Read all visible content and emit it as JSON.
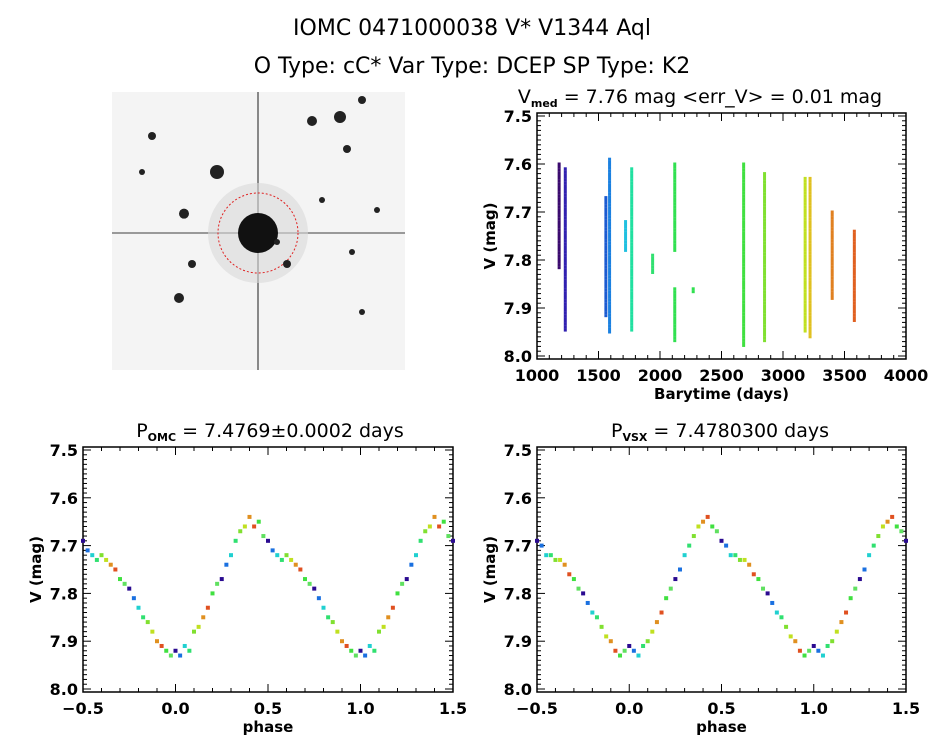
{
  "header": {
    "title": "IOMC 0471000038    V* V1344 Aql",
    "subtitle": "O Type: cC*  Var Type: DCEP  SP Type: K2"
  },
  "image_panel": {
    "description_icon": "sky-image",
    "marker_color": "#e02020"
  },
  "chart_data": [
    {
      "type": "scatter",
      "title": {
        "main": "V",
        "sub": "med",
        "rest": " = 7.76 mag <err_V> = 0.01 mag"
      },
      "xlabel": "Barytime (days)",
      "ylabel": "V (mag)",
      "xlim": [
        1000,
        4000
      ],
      "ylim": [
        8.0,
        7.5
      ],
      "xticks": [
        "1000",
        "1500",
        "2000",
        "2500",
        "3000",
        "3500",
        "4000"
      ],
      "yticks": [
        "7.5",
        "7.6",
        "7.7",
        "7.8",
        "7.9",
        "8.0"
      ],
      "seasons": [
        {
          "t": 1180,
          "vmin": 7.6,
          "vmax": 7.82,
          "color": "#3a0a6e"
        },
        {
          "t": 1230,
          "vmin": 7.61,
          "vmax": 7.95,
          "color": "#3020b0"
        },
        {
          "t": 1560,
          "vmin": 7.67,
          "vmax": 7.92,
          "color": "#1a5ad0"
        },
        {
          "t": 1590,
          "vmin": 7.59,
          "vmax": 7.95,
          "color": "#1a80e0"
        },
        {
          "t": 1720,
          "vmin": 7.72,
          "vmax": 7.78,
          "color": "#20c0e0"
        },
        {
          "t": 1770,
          "vmin": 7.61,
          "vmax": 7.95,
          "color": "#20e0a0"
        },
        {
          "t": 1940,
          "vmin": 7.79,
          "vmax": 7.83,
          "color": "#30e070"
        },
        {
          "t": 2120,
          "vmin": 7.6,
          "vmax": 7.78,
          "color": "#30e050"
        },
        {
          "t": 2120,
          "vmin": 7.86,
          "vmax": 7.97,
          "color": "#30e050"
        },
        {
          "t": 2270,
          "vmin": 7.86,
          "vmax": 7.87,
          "color": "#30e050"
        },
        {
          "t": 2680,
          "vmin": 7.6,
          "vmax": 7.98,
          "color": "#40e040"
        },
        {
          "t": 2850,
          "vmin": 7.62,
          "vmax": 7.97,
          "color": "#80e030"
        },
        {
          "t": 3180,
          "vmin": 7.63,
          "vmax": 7.95,
          "color": "#c0e020"
        },
        {
          "t": 3220,
          "vmin": 7.63,
          "vmax": 7.96,
          "color": "#e0c020"
        },
        {
          "t": 3400,
          "vmin": 7.7,
          "vmax": 7.88,
          "color": "#e08020"
        },
        {
          "t": 3580,
          "vmin": 7.74,
          "vmax": 7.93,
          "color": "#e06020"
        }
      ]
    },
    {
      "type": "scatter",
      "title": {
        "main": "P",
        "sub": "OMC",
        "rest": " = 7.4769±0.0002 days"
      },
      "xlabel": "phase",
      "ylabel": "V (mag)",
      "xlim": [
        -0.5,
        1.5
      ],
      "ylim": [
        8.0,
        7.5
      ],
      "xticks": [
        "-0.5",
        "0.0",
        "0.5",
        "1.0",
        "1.5"
      ],
      "yticks": [
        "7.5",
        "7.6",
        "7.7",
        "7.8",
        "7.9",
        "8.0"
      ],
      "points": [
        [
          0.0,
          7.92
        ],
        [
          0.025,
          7.93
        ],
        [
          0.05,
          7.91
        ],
        [
          0.075,
          7.92
        ],
        [
          0.1,
          7.88
        ],
        [
          0.125,
          7.87
        ],
        [
          0.15,
          7.85
        ],
        [
          0.175,
          7.83
        ],
        [
          0.2,
          7.8
        ],
        [
          0.225,
          7.78
        ],
        [
          0.25,
          7.77
        ],
        [
          0.275,
          7.74
        ],
        [
          0.3,
          7.72
        ],
        [
          0.325,
          7.69
        ],
        [
          0.35,
          7.67
        ],
        [
          0.375,
          7.66
        ],
        [
          0.4,
          7.64
        ],
        [
          0.425,
          7.66
        ],
        [
          0.45,
          7.65
        ],
        [
          0.475,
          7.68
        ],
        [
          0.5,
          7.69
        ],
        [
          0.525,
          7.71
        ],
        [
          0.55,
          7.72
        ],
        [
          0.575,
          7.73
        ],
        [
          0.6,
          7.72
        ],
        [
          0.625,
          7.73
        ],
        [
          0.65,
          7.74
        ],
        [
          0.675,
          7.75
        ],
        [
          0.7,
          7.77
        ],
        [
          0.725,
          7.78
        ],
        [
          0.75,
          7.79
        ],
        [
          0.775,
          7.81
        ],
        [
          0.8,
          7.83
        ],
        [
          0.825,
          7.85
        ],
        [
          0.85,
          7.86
        ],
        [
          0.875,
          7.88
        ],
        [
          0.9,
          7.9
        ],
        [
          0.925,
          7.91
        ],
        [
          0.95,
          7.92
        ],
        [
          0.975,
          7.93
        ]
      ]
    },
    {
      "type": "scatter",
      "title": {
        "main": "P",
        "sub": "VSX",
        "rest": " = 7.4780300 days"
      },
      "xlabel": "phase",
      "ylabel": "V (mag)",
      "xlim": [
        -0.5,
        1.5
      ],
      "ylim": [
        8.0,
        7.5
      ],
      "xticks": [
        "-0.5",
        "0.0",
        "0.5",
        "1.0",
        "1.5"
      ],
      "yticks": [
        "7.5",
        "7.6",
        "7.7",
        "7.8",
        "7.9",
        "8.0"
      ],
      "points": [
        [
          0.0,
          7.91
        ],
        [
          0.025,
          7.92
        ],
        [
          0.05,
          7.93
        ],
        [
          0.075,
          7.91
        ],
        [
          0.1,
          7.9
        ],
        [
          0.125,
          7.88
        ],
        [
          0.15,
          7.86
        ],
        [
          0.175,
          7.84
        ],
        [
          0.2,
          7.81
        ],
        [
          0.225,
          7.79
        ],
        [
          0.25,
          7.77
        ],
        [
          0.275,
          7.75
        ],
        [
          0.3,
          7.72
        ],
        [
          0.325,
          7.7
        ],
        [
          0.35,
          7.68
        ],
        [
          0.375,
          7.66
        ],
        [
          0.4,
          7.65
        ],
        [
          0.425,
          7.64
        ],
        [
          0.45,
          7.66
        ],
        [
          0.475,
          7.67
        ],
        [
          0.5,
          7.69
        ],
        [
          0.525,
          7.7
        ],
        [
          0.55,
          7.72
        ],
        [
          0.575,
          7.72
        ],
        [
          0.6,
          7.73
        ],
        [
          0.625,
          7.73
        ],
        [
          0.65,
          7.74
        ],
        [
          0.675,
          7.76
        ],
        [
          0.7,
          7.77
        ],
        [
          0.725,
          7.79
        ],
        [
          0.75,
          7.8
        ],
        [
          0.775,
          7.82
        ],
        [
          0.8,
          7.84
        ],
        [
          0.825,
          7.85
        ],
        [
          0.85,
          7.87
        ],
        [
          0.875,
          7.89
        ],
        [
          0.9,
          7.9
        ],
        [
          0.925,
          7.92
        ],
        [
          0.95,
          7.93
        ],
        [
          0.975,
          7.92
        ]
      ]
    }
  ],
  "palette": [
    "#2a0a90",
    "#1a70e0",
    "#20d0d0",
    "#30e070",
    "#80e030",
    "#c0e020",
    "#e09020",
    "#e05020",
    "#40e040",
    "#60e060"
  ]
}
